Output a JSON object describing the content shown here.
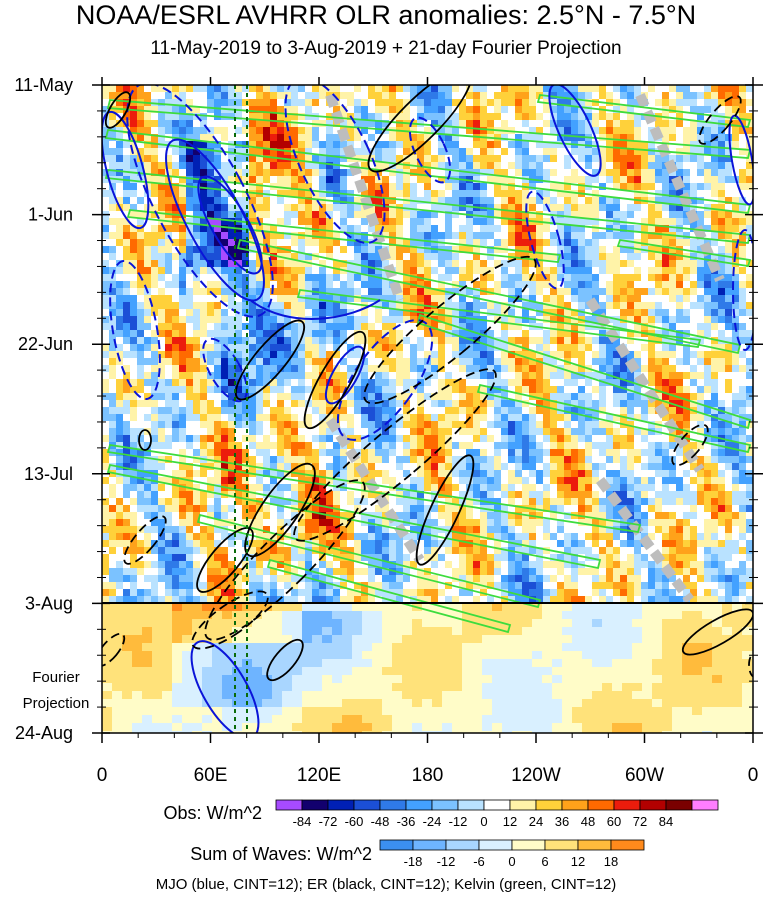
{
  "title": "NOAA/ESRL AVHRR OLR anomalies: 2.5°N - 7.5°N",
  "subtitle": "11-May-2019 to 3-Aug-2019 + 21-day Fourier Projection",
  "chart_data": {
    "type": "heatmap",
    "x_tick_labels": [
      "0",
      "60E",
      "120E",
      "180",
      "120W",
      "60W",
      "0"
    ],
    "y_tick_labels": [
      "11-May",
      "1-Jun",
      "22-Jun",
      "13-Jul",
      "3-Aug",
      "24-Aug"
    ],
    "projection_label_line1": "Fourier",
    "projection_label_line2": "Projection",
    "obs_colorbar": {
      "label": "Obs: W/m^2",
      "levels": [
        "-84",
        "-72",
        "-60",
        "-48",
        "-36",
        "-24",
        "-12",
        "0",
        "12",
        "24",
        "36",
        "48",
        "60",
        "72",
        "84"
      ],
      "colors": [
        "#a74bff",
        "#12006e",
        "#0020b4",
        "#1b4fd6",
        "#2f7ae8",
        "#43a1ff",
        "#7bc2ff",
        "#b9e2ff",
        "#ffffff",
        "#fff3a8",
        "#ffd13a",
        "#ffa21a",
        "#ff6a00",
        "#ec1c0c",
        "#b30000",
        "#7a0000",
        "#ff7eff"
      ]
    },
    "waves_colorbar": {
      "label": "Sum of Waves: W/m^2",
      "levels": [
        "-18",
        "-12",
        "-6",
        "0",
        "6",
        "12",
        "18"
      ],
      "colors": [
        "#3b8ff0",
        "#6eb4ff",
        "#a9d6ff",
        "#d9f0ff",
        "#fffcc8",
        "#ffe27a",
        "#ffbb3c",
        "#ff8a1c"
      ]
    },
    "contour_legend": "MJO (blue, CINT=12); ER (black, CINT=12); Kelvin (green, CINT=12)"
  }
}
